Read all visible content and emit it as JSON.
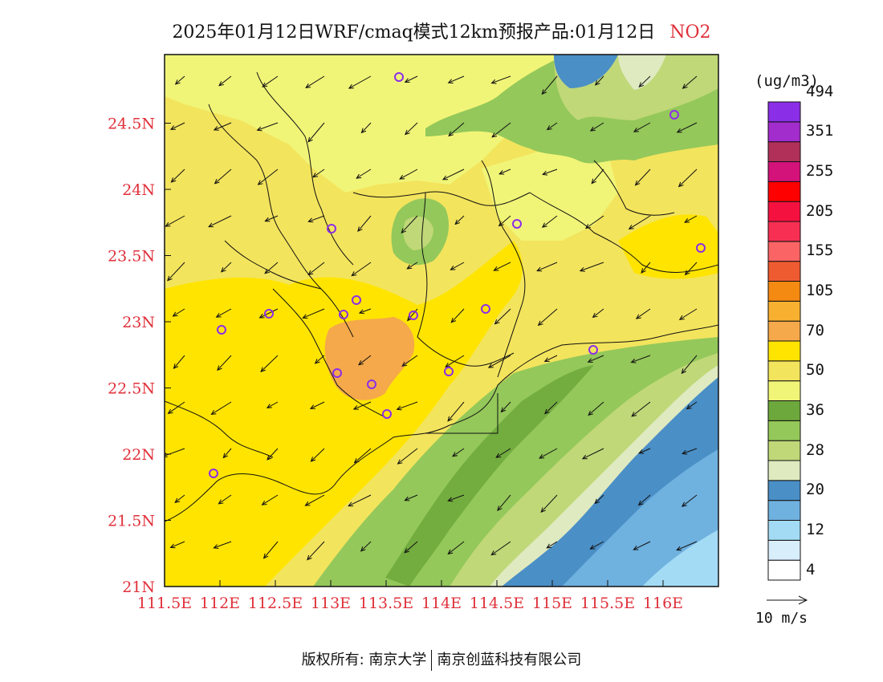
{
  "title": {
    "text": "2025年01月12日WRF/cmaq模式12km预报产品:01月12日",
    "pollutant": "NO2"
  },
  "axes": {
    "lat_labels": [
      "21N",
      "21.5N",
      "22N",
      "22.5N",
      "23N",
      "23.5N",
      "24N",
      "24.5N"
    ],
    "lon_labels": [
      "111.5E",
      "112E",
      "112.5E",
      "113E",
      "113.5E",
      "114E",
      "114.5E",
      "115E",
      "115.5E",
      "116E"
    ],
    "label_color": "#e0303a"
  },
  "colorbar": {
    "unit": "(ug/m3)",
    "labels": [
      "4",
      "12",
      "20",
      "28",
      "36",
      "50",
      "70",
      "105",
      "155",
      "205",
      "255",
      "351",
      "494"
    ],
    "colors": [
      "#ffffff",
      "#d9eefb",
      "#a3dbf5",
      "#6fb1df",
      "#4a8fc6",
      "#dfeac0",
      "#c0d878",
      "#94c85a",
      "#6da83c",
      "#f1f577",
      "#f3e45d",
      "#ffe400",
      "#f5a94a",
      "#f8b030",
      "#f58a12",
      "#ef5b30",
      "#fb6464",
      "#f72f53",
      "#f5113f",
      "#ff0000",
      "#d3127a",
      "#b0305a",
      "#a22ccc",
      "#8b2ee8"
    ]
  },
  "vector_legend": {
    "label": "10 m/s"
  },
  "footer": {
    "left": "版权所有: 南京大学",
    "right": "南京创蓝科技有限公司"
  }
}
